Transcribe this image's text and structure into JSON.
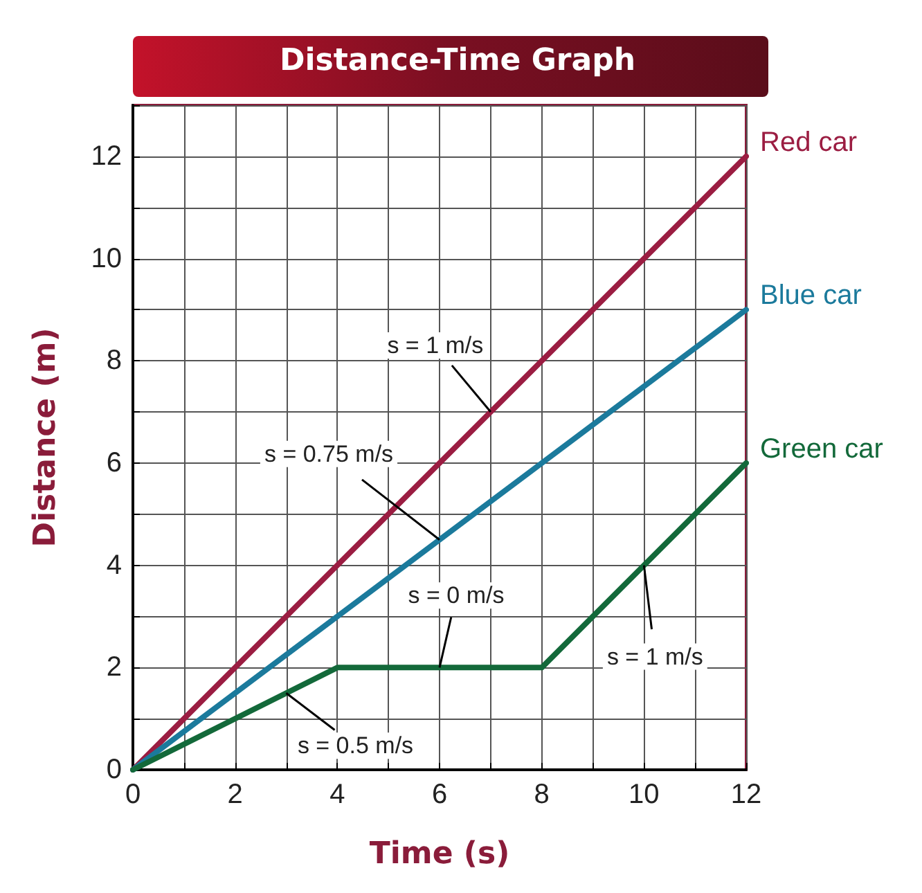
{
  "chart_data": {
    "type": "line",
    "title": "Distance-Time Graph",
    "xlabel": "Time (s)",
    "ylabel": "Distance (m)",
    "xlim": [
      0,
      12
    ],
    "ylim": [
      0,
      13
    ],
    "xticks": [
      0,
      {
        "value": 1,
        "label": null
      },
      2,
      {
        "value": 3,
        "label": null
      },
      4,
      {
        "value": 5,
        "label": null
      },
      6,
      {
        "value": 7,
        "label": null
      },
      8,
      {
        "value": 9,
        "label": null
      },
      10,
      {
        "value": 11,
        "label": null
      },
      12
    ],
    "yticks": [
      0,
      {
        "value": 1,
        "label": null
      },
      2,
      {
        "value": 3,
        "label": null
      },
      4,
      {
        "value": 5,
        "label": null
      },
      6,
      {
        "value": 7,
        "label": null
      },
      8,
      {
        "value": 9,
        "label": null
      },
      10,
      {
        "value": 11,
        "label": null
      },
      12,
      {
        "value": 13,
        "label": null
      }
    ],
    "grid": true,
    "legend": false,
    "marker": "none",
    "line_style": "solid",
    "series": [
      {
        "name": "Red car",
        "color": "#9b1d42",
        "x": [
          0,
          12
        ],
        "values": [
          0,
          12
        ]
      },
      {
        "name": "Blue car",
        "color": "#1b7a9c",
        "x": [
          0,
          12
        ],
        "values": [
          0,
          9
        ]
      },
      {
        "name": "Green car",
        "color": "#13693a",
        "x": [
          0,
          4,
          8,
          12
        ],
        "values": [
          0,
          2,
          2,
          6
        ]
      }
    ],
    "annotations": [
      {
        "text": "s = 1 m/s",
        "x": 7,
        "y": 7
      },
      {
        "text": "s = 0.75 m/s",
        "x": 6,
        "y": 4.5
      },
      {
        "text": "s = 0 m/s",
        "x": 6,
        "y": 2
      },
      {
        "text": "s = 1 m/s",
        "x": 10,
        "y": 4
      },
      {
        "text": "s = 0.5 m/s",
        "x": 3,
        "y": 1.5
      }
    ]
  }
}
